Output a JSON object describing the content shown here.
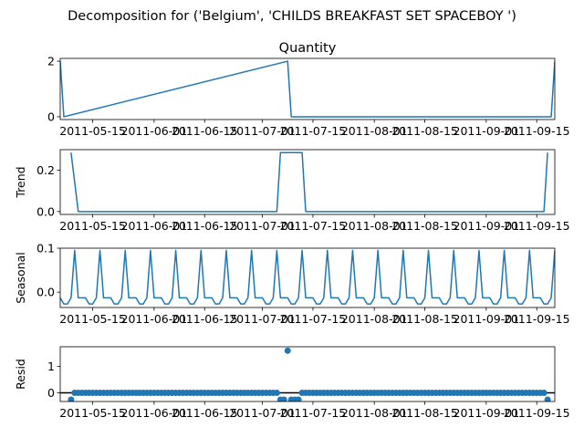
{
  "figure": {
    "suptitle": "Decomposition for ('Belgium', 'CHILDS BREAKFAST SET SPACEBOY ')"
  },
  "chart_data": [
    {
      "type": "line",
      "panel": "observed",
      "title": "Quantity",
      "ylabel": "",
      "ylim": [
        -0.1,
        2.1
      ],
      "yticks": [
        "0",
        "2"
      ],
      "xrange": [
        "2011-05-06",
        "2011-09-20"
      ],
      "xticks": [
        "2011-05-15",
        "2011-06-01",
        "2011-06-15",
        "2011-07-01",
        "2011-07-15",
        "2011-08-01",
        "2011-08-15",
        "2011-09-01",
        "2011-09-15"
      ],
      "color": "#1f77b4",
      "x": [
        "2011-05-06",
        "2011-05-07",
        "2011-07-08",
        "2011-07-09",
        "2011-09-19",
        "2011-09-20"
      ],
      "values": [
        2,
        0,
        2,
        0,
        0,
        2
      ]
    },
    {
      "type": "line",
      "panel": "trend",
      "ylabel": "Trend",
      "ylim": [
        -0.014,
        0.3
      ],
      "yticks": [
        "0.0",
        "0.2"
      ],
      "xrange": [
        "2011-05-06",
        "2011-09-20"
      ],
      "xticks": [
        "2011-05-15",
        "2011-06-01",
        "2011-06-15",
        "2011-07-01",
        "2011-07-15",
        "2011-08-01",
        "2011-08-15",
        "2011-09-01",
        "2011-09-15"
      ],
      "color": "#1f77b4",
      "x": [
        "2011-05-09",
        "2011-05-11",
        "2011-07-05",
        "2011-07-06",
        "2011-07-12",
        "2011-07-13",
        "2011-09-17",
        "2011-09-18"
      ],
      "values": [
        0.2857,
        0,
        0,
        0.2857,
        0.2857,
        0,
        0,
        0.2857
      ]
    },
    {
      "type": "line",
      "panel": "seasonal",
      "ylabel": "Seasonal",
      "ylim": [
        -0.035,
        0.1
      ],
      "yticks": [
        "0.0",
        "0.1"
      ],
      "xrange": [
        "2011-05-06",
        "2011-09-20"
      ],
      "xticks": [
        "2011-05-15",
        "2011-06-01",
        "2011-06-15",
        "2011-07-01",
        "2011-07-15",
        "2011-08-01",
        "2011-08-15",
        "2011-09-01",
        "2011-09-15"
      ],
      "color": "#1f77b4",
      "start": "2011-05-06",
      "period_pattern": [
        -0.013,
        -0.027,
        -0.027,
        -0.013,
        0.095,
        -0.013,
        -0.013
      ],
      "count": 138
    },
    {
      "type": "scatter",
      "panel": "resid",
      "ylabel": "Resid",
      "ylim": [
        -0.33,
        1.75
      ],
      "yticks": [
        "0",
        "1"
      ],
      "xrange": [
        "2011-05-06",
        "2011-09-20"
      ],
      "xticks": [
        "2011-05-15",
        "2011-06-01",
        "2011-06-15",
        "2011-07-01",
        "2011-07-15",
        "2011-08-01",
        "2011-08-15",
        "2011-09-01",
        "2011-09-15"
      ],
      "color": "#1f77b4",
      "baseline": 0,
      "outliers": [
        {
          "x": "2011-05-09",
          "y": -0.26
        },
        {
          "x": "2011-07-06",
          "y": -0.26
        },
        {
          "x": "2011-07-07",
          "y": -0.26
        },
        {
          "x": "2011-07-08",
          "y": 1.6
        },
        {
          "x": "2011-07-09",
          "y": -0.26
        },
        {
          "x": "2011-07-10",
          "y": -0.26
        },
        {
          "x": "2011-07-11",
          "y": -0.26
        },
        {
          "x": "2011-09-18",
          "y": -0.26
        }
      ],
      "range": [
        "2011-05-09",
        "2011-09-18"
      ]
    }
  ]
}
